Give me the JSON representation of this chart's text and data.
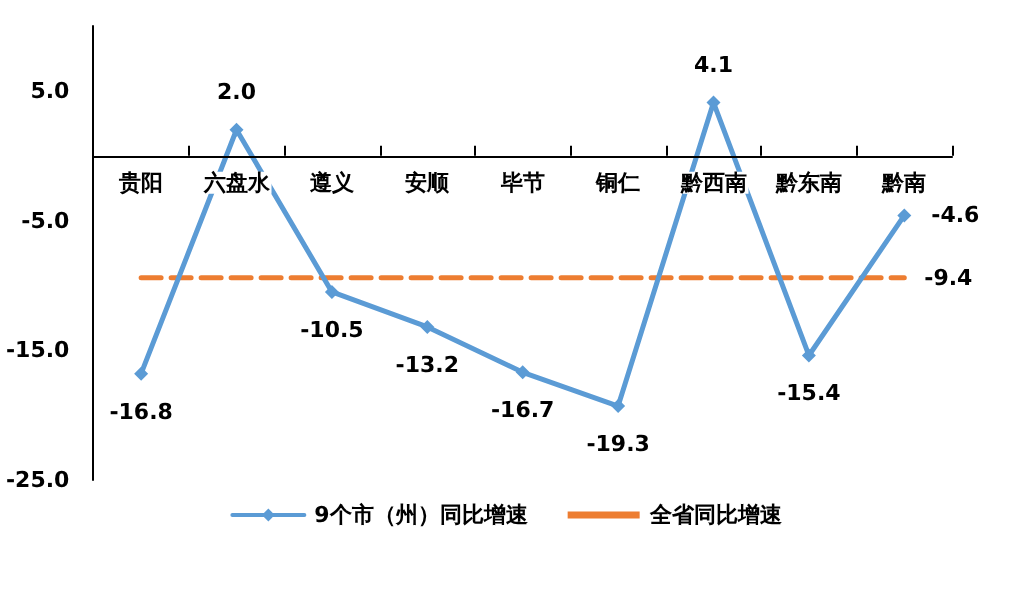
{
  "chart_data": {
    "type": "line",
    "categories": [
      "贵阳",
      "六盘水",
      "遵义",
      "安顺",
      "毕节",
      "铜仁",
      "黔西南",
      "黔东南",
      "黔南"
    ],
    "series": [
      {
        "name": "9个市（州）同比增速",
        "color": "#5b9bd5",
        "marker": "diamond",
        "line_style": "solid",
        "values": [
          -16.8,
          2.0,
          -10.5,
          -13.2,
          -16.7,
          -19.3,
          4.1,
          -15.4,
          -4.6
        ],
        "value_labels": [
          "-16.8",
          "2.0",
          "-10.5",
          "-13.2",
          "-16.7",
          "-19.3",
          "4.1",
          "-15.4",
          "-4.6"
        ]
      },
      {
        "name": "全省同比增速",
        "color": "#ed7d31",
        "marker": "none",
        "line_style": "dashed",
        "values": [
          -9.4,
          -9.4,
          -9.4,
          -9.4,
          -9.4,
          -9.4,
          -9.4,
          -9.4,
          -9.4
        ],
        "value_labels": [
          null,
          null,
          null,
          null,
          null,
          null,
          null,
          null,
          "-9.4"
        ]
      }
    ],
    "ylim": [
      -25,
      10
    ],
    "yticks": [
      {
        "value": -25,
        "label": "-25.0"
      },
      {
        "value": -15,
        "label": "-15.0"
      },
      {
        "value": -5,
        "label": "-5.0"
      },
      {
        "value": 5,
        "label": "5.0"
      }
    ],
    "grid": false,
    "legend": "bottom"
  }
}
